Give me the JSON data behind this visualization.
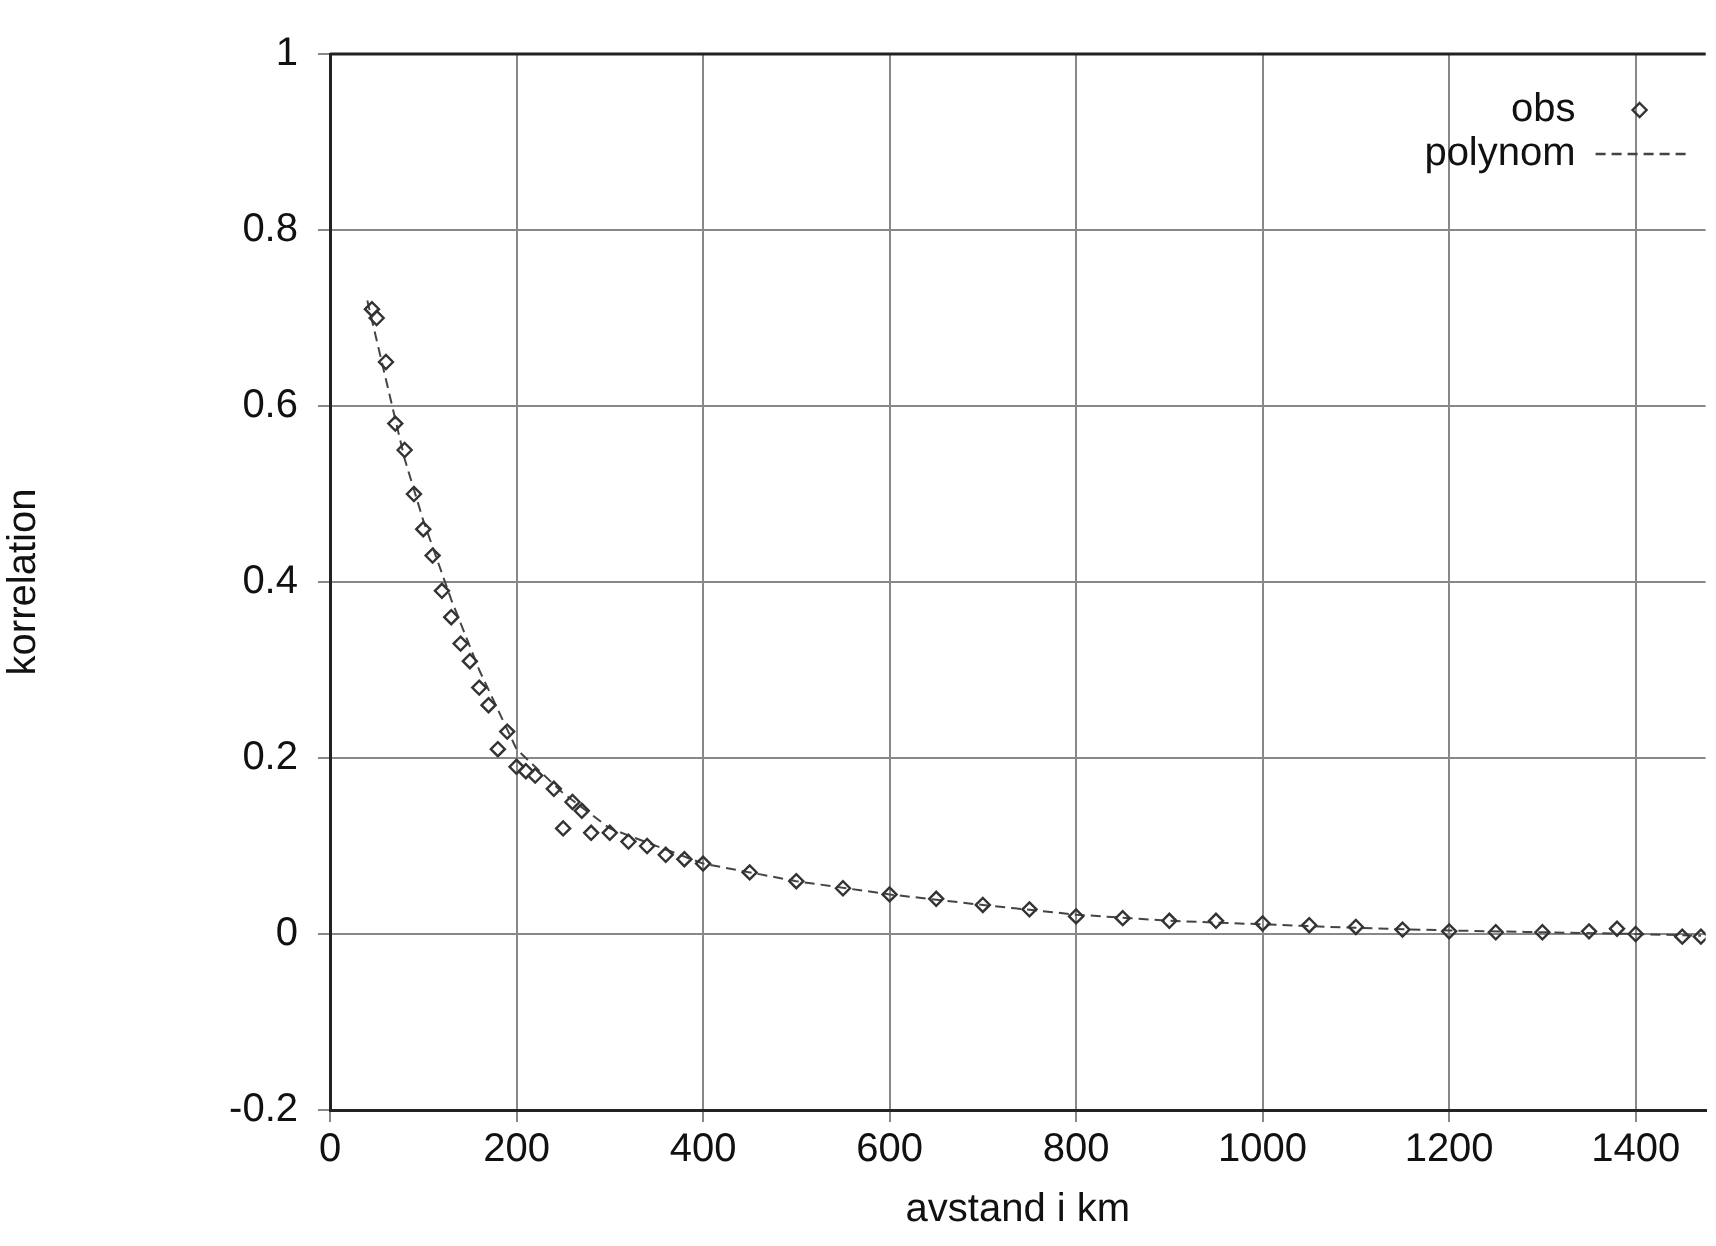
{
  "chart_data": {
    "type": "scatter",
    "xlabel": "avstand i km",
    "ylabel": "korrelation",
    "xlim": [
      0,
      1475
    ],
    "xticks": [
      0,
      200,
      400,
      600,
      800,
      1000,
      1200,
      1400
    ],
    "ylim": [
      -0.2,
      1
    ],
    "yticks": [
      -0.2,
      0,
      0.2,
      0.4,
      0.6,
      0.8,
      1
    ],
    "grid": true,
    "legend": "top right",
    "series": [
      {
        "name": "obs",
        "marker": "diamond",
        "color": "#333333",
        "x": [
          45,
          50,
          60,
          70,
          80,
          90,
          100,
          110,
          120,
          130,
          140,
          150,
          160,
          170,
          180,
          190,
          200,
          210,
          220,
          240,
          250,
          260,
          270,
          280,
          300,
          320,
          340,
          360,
          380,
          400,
          450,
          500,
          550,
          600,
          650,
          700,
          750,
          800,
          850,
          900,
          950,
          1000,
          1050,
          1100,
          1150,
          1200,
          1250,
          1300,
          1350,
          1380,
          1400,
          1450,
          1470
        ],
        "values": [
          0.71,
          0.7,
          0.65,
          0.58,
          0.55,
          0.5,
          0.46,
          0.43,
          0.39,
          0.36,
          0.33,
          0.31,
          0.28,
          0.26,
          0.21,
          0.23,
          0.19,
          0.185,
          0.18,
          0.165,
          0.12,
          0.15,
          0.14,
          0.115,
          0.115,
          0.105,
          0.1,
          0.09,
          0.085,
          0.08,
          0.07,
          0.06,
          0.052,
          0.045,
          0.04,
          0.033,
          0.028,
          0.02,
          0.018,
          0.015,
          0.015,
          0.012,
          0.01,
          0.008,
          0.005,
          0.003,
          0.002,
          0.002,
          0.003,
          0.006,
          0,
          -0.003,
          -0.003
        ]
      },
      {
        "name": "polynom",
        "type": "line",
        "color": "#444444",
        "line_style": "dashed",
        "x": [
          40,
          60,
          80,
          100,
          130,
          160,
          200,
          250,
          300,
          400,
          500,
          600,
          700,
          800,
          900,
          1000,
          1100,
          1200,
          1300,
          1400,
          1470
        ],
        "values": [
          0.72,
          0.63,
          0.54,
          0.47,
          0.38,
          0.3,
          0.21,
          0.16,
          0.12,
          0.08,
          0.06,
          0.045,
          0.033,
          0.022,
          0.015,
          0.011,
          0.007,
          0.004,
          0.002,
          0,
          -0.002
        ]
      }
    ]
  }
}
